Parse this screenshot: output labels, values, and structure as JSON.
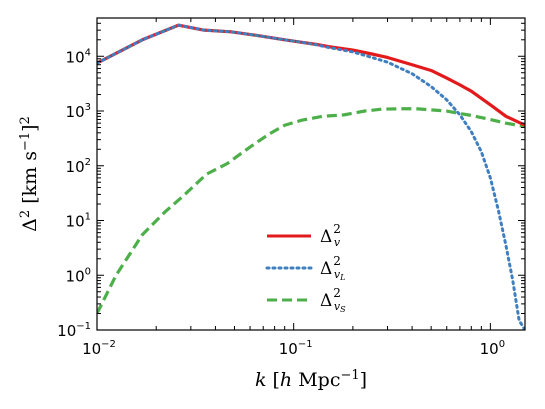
{
  "chart_data": {
    "type": "line",
    "xscale": "log",
    "yscale": "log",
    "xlim": [
      0.01,
      1.5
    ],
    "ylim": [
      0.1,
      50000
    ],
    "xlabel": "k [h Mpc⁻¹]",
    "ylabel": "Δ² [km s⁻¹]²",
    "xticks": [
      {
        "value": 0.01,
        "mantissa": "10",
        "exp": "−2"
      },
      {
        "value": 0.1,
        "mantissa": "10",
        "exp": "−1"
      },
      {
        "value": 1,
        "mantissa": "10",
        "exp": "0"
      }
    ],
    "yticks": [
      {
        "value": 0.1,
        "mantissa": "10",
        "exp": "−1"
      },
      {
        "value": 1,
        "mantissa": "10",
        "exp": "0"
      },
      {
        "value": 10,
        "mantissa": "10",
        "exp": "1"
      },
      {
        "value": 100,
        "mantissa": "10",
        "exp": "2"
      },
      {
        "value": 1000,
        "mantissa": "10",
        "exp": "3"
      },
      {
        "value": 10000,
        "mantissa": "10",
        "exp": "4"
      }
    ],
    "legend_position": "lower-center",
    "series": [
      {
        "name": "Δ²_v",
        "color": "#e31a1c",
        "style": "solid",
        "x": [
          0.01,
          0.017,
          0.026,
          0.035,
          0.048,
          0.065,
          0.09,
          0.11,
          0.13,
          0.15,
          0.2,
          0.25,
          0.3,
          0.4,
          0.5,
          0.6,
          0.7,
          0.8,
          1.0,
          1.2,
          1.5
        ],
        "y": [
          7500,
          20000,
          37000,
          30000,
          28000,
          24000,
          20000,
          18000,
          16500,
          15000,
          13000,
          11000,
          9500,
          7000,
          5500,
          4000,
          3000,
          2300,
          1300,
          800,
          550
        ]
      },
      {
        "name": "Δ²_vL",
        "color": "#3f7fbf",
        "style": "dotted",
        "x": [
          0.01,
          0.017,
          0.026,
          0.035,
          0.048,
          0.065,
          0.09,
          0.11,
          0.13,
          0.15,
          0.2,
          0.25,
          0.3,
          0.4,
          0.5,
          0.6,
          0.7,
          0.8,
          0.9,
          1.0,
          1.1,
          1.2,
          1.3,
          1.4,
          1.5
        ],
        "y": [
          7500,
          20000,
          37000,
          30000,
          28000,
          24000,
          20000,
          18000,
          16300,
          14500,
          12000,
          9500,
          7800,
          4800,
          2800,
          1600,
          850,
          420,
          180,
          60,
          15,
          3.5,
          0.8,
          0.15,
          0.1
        ]
      },
      {
        "name": "Δ²_vS",
        "color": "#4daf4a",
        "style": "dashed",
        "x": [
          0.01,
          0.0125,
          0.017,
          0.022,
          0.028,
          0.036,
          0.046,
          0.06,
          0.075,
          0.09,
          0.11,
          0.14,
          0.18,
          0.23,
          0.28,
          0.35,
          0.42,
          0.5,
          0.6,
          0.7,
          0.8,
          1.0,
          1.2,
          1.5
        ],
        "y": [
          0.2,
          1.0,
          5.5,
          14,
          30,
          70,
          110,
          220,
          380,
          550,
          680,
          800,
          850,
          1000,
          1080,
          1100,
          1100,
          1050,
          1000,
          900,
          830,
          700,
          600,
          520
        ]
      }
    ]
  }
}
